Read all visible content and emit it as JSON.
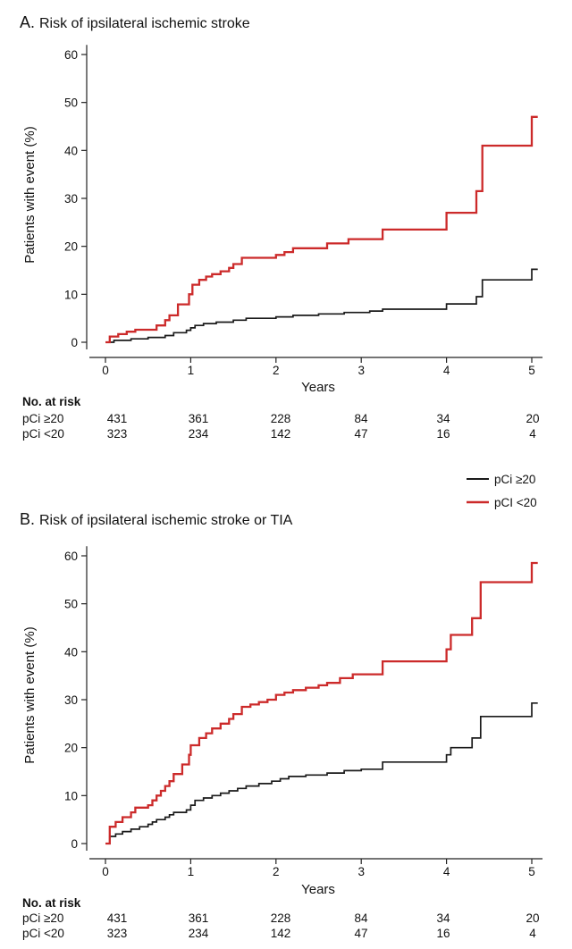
{
  "panels": [
    {
      "title": "Risk of ipsilateral ischemic stroke",
      "letter": "A.",
      "ylabel": "Patients with event (%)",
      "xlabel": "Years",
      "yticks": [
        "0",
        "10",
        "20",
        "30",
        "40",
        "50",
        "60"
      ],
      "xticks": [
        "0",
        "1",
        "2",
        "3",
        "4",
        "5"
      ],
      "risk": {
        "heading": "No. at risk",
        "rows": [
          {
            "label": "pCi ≥20",
            "values": [
              "431",
              "361",
              "228",
              "84",
              "34",
              "20"
            ]
          },
          {
            "label": "pCi <20",
            "values": [
              "323",
              "234",
              "142",
              "47",
              "16",
              "4"
            ]
          }
        ]
      }
    },
    {
      "title": "Risk of ipsilateral ischemic stroke or TIA",
      "letter": "B.",
      "ylabel": "Patients with event (%)",
      "xlabel": "Years",
      "yticks": [
        "0",
        "10",
        "20",
        "30",
        "40",
        "50",
        "60"
      ],
      "xticks": [
        "0",
        "1",
        "2",
        "3",
        "4",
        "5"
      ],
      "risk": {
        "heading": "No. at risk",
        "rows": [
          {
            "label": "pCi ≥20",
            "values": [
              "431",
              "361",
              "228",
              "84",
              "34",
              "20"
            ]
          },
          {
            "label": "pCi <20",
            "values": [
              "323",
              "234",
              "142",
              "47",
              "16",
              "4"
            ]
          }
        ]
      }
    }
  ],
  "legend": [
    {
      "label": "pCi ≥20",
      "color": "#1a1a1a"
    },
    {
      "label": "pCI <20",
      "color": "#cc2a2a"
    }
  ],
  "chart_data": [
    {
      "type": "line",
      "step": true,
      "title": "Risk of ipsilateral ischemic stroke",
      "xlabel": "Years",
      "ylabel": "Patients with event (%)",
      "xlim": [
        0,
        5.1
      ],
      "ylim": [
        0,
        60
      ],
      "grid": false,
      "series": [
        {
          "name": "pCi ≥20",
          "color": "#1a1a1a",
          "points": [
            [
              0,
              0
            ],
            [
              0.1,
              0.4
            ],
            [
              0.3,
              0.7
            ],
            [
              0.5,
              1.0
            ],
            [
              0.7,
              1.4
            ],
            [
              0.8,
              2.0
            ],
            [
              0.95,
              2.5
            ],
            [
              1.0,
              3.0
            ],
            [
              1.05,
              3.5
            ],
            [
              1.15,
              3.9
            ],
            [
              1.3,
              4.2
            ],
            [
              1.5,
              4.6
            ],
            [
              1.65,
              5.0
            ],
            [
              2.0,
              5.3
            ],
            [
              2.2,
              5.6
            ],
            [
              2.5,
              5.9
            ],
            [
              2.8,
              6.2
            ],
            [
              3.1,
              6.5
            ],
            [
              3.25,
              6.9
            ],
            [
              4.0,
              8.0
            ],
            [
              4.35,
              9.5
            ],
            [
              4.42,
              13.0
            ],
            [
              5.0,
              15.2
            ],
            [
              5.07,
              15.2
            ]
          ]
        },
        {
          "name": "pCI <20",
          "color": "#cc2a2a",
          "points": [
            [
              0,
              0
            ],
            [
              0.05,
              1.2
            ],
            [
              0.15,
              1.7
            ],
            [
              0.25,
              2.2
            ],
            [
              0.35,
              2.6
            ],
            [
              0.6,
              3.5
            ],
            [
              0.7,
              4.6
            ],
            [
              0.75,
              5.6
            ],
            [
              0.85,
              7.9
            ],
            [
              0.98,
              10.0
            ],
            [
              1.02,
              12.0
            ],
            [
              1.1,
              13.0
            ],
            [
              1.18,
              13.7
            ],
            [
              1.25,
              14.2
            ],
            [
              1.35,
              14.8
            ],
            [
              1.45,
              15.5
            ],
            [
              1.5,
              16.3
            ],
            [
              1.6,
              17.6
            ],
            [
              2.0,
              18.2
            ],
            [
              2.1,
              18.8
            ],
            [
              2.2,
              19.6
            ],
            [
              2.6,
              20.6
            ],
            [
              2.85,
              21.5
            ],
            [
              3.25,
              23.5
            ],
            [
              4.0,
              27.0
            ],
            [
              4.35,
              31.5
            ],
            [
              4.42,
              41.0
            ],
            [
              5.0,
              47.0
            ],
            [
              5.07,
              47.0
            ]
          ]
        }
      ]
    },
    {
      "type": "line",
      "step": true,
      "title": "Risk of ipsilateral ischemic stroke or TIA",
      "xlabel": "Years",
      "ylabel": "Patients with event (%)",
      "xlim": [
        0,
        5.1
      ],
      "ylim": [
        0,
        60
      ],
      "grid": false,
      "series": [
        {
          "name": "pCi ≥20",
          "color": "#1a1a1a",
          "points": [
            [
              0,
              0
            ],
            [
              0.05,
              1.5
            ],
            [
              0.12,
              2.0
            ],
            [
              0.2,
              2.5
            ],
            [
              0.3,
              3.0
            ],
            [
              0.4,
              3.5
            ],
            [
              0.5,
              4.0
            ],
            [
              0.55,
              4.5
            ],
            [
              0.6,
              5.0
            ],
            [
              0.7,
              5.5
            ],
            [
              0.75,
              6.0
            ],
            [
              0.8,
              6.5
            ],
            [
              0.95,
              7.0
            ],
            [
              1.0,
              8.0
            ],
            [
              1.05,
              9.0
            ],
            [
              1.15,
              9.5
            ],
            [
              1.25,
              10.0
            ],
            [
              1.35,
              10.5
            ],
            [
              1.45,
              11.0
            ],
            [
              1.55,
              11.5
            ],
            [
              1.65,
              12.0
            ],
            [
              1.8,
              12.5
            ],
            [
              1.95,
              13.0
            ],
            [
              2.05,
              13.5
            ],
            [
              2.15,
              14.0
            ],
            [
              2.35,
              14.3
            ],
            [
              2.6,
              14.7
            ],
            [
              2.8,
              15.2
            ],
            [
              3.0,
              15.5
            ],
            [
              3.25,
              17.0
            ],
            [
              4.0,
              18.5
            ],
            [
              4.05,
              20.0
            ],
            [
              4.3,
              22.0
            ],
            [
              4.4,
              26.5
            ],
            [
              5.0,
              29.3
            ],
            [
              5.07,
              29.3
            ]
          ]
        },
        {
          "name": "pCI <20",
          "color": "#cc2a2a",
          "points": [
            [
              0,
              0
            ],
            [
              0.05,
              3.5
            ],
            [
              0.12,
              4.5
            ],
            [
              0.2,
              5.5
            ],
            [
              0.3,
              6.5
            ],
            [
              0.35,
              7.5
            ],
            [
              0.5,
              8.0
            ],
            [
              0.55,
              9.0
            ],
            [
              0.6,
              10.0
            ],
            [
              0.65,
              11.0
            ],
            [
              0.7,
              12.0
            ],
            [
              0.75,
              13.0
            ],
            [
              0.8,
              14.5
            ],
            [
              0.9,
              16.5
            ],
            [
              0.98,
              18.5
            ],
            [
              1.0,
              20.5
            ],
            [
              1.1,
              22.0
            ],
            [
              1.18,
              23.0
            ],
            [
              1.25,
              24.0
            ],
            [
              1.35,
              25.0
            ],
            [
              1.45,
              26.0
            ],
            [
              1.5,
              27.0
            ],
            [
              1.6,
              28.5
            ],
            [
              1.7,
              29.0
            ],
            [
              1.8,
              29.5
            ],
            [
              1.9,
              30.0
            ],
            [
              2.0,
              31.0
            ],
            [
              2.1,
              31.5
            ],
            [
              2.2,
              32.0
            ],
            [
              2.35,
              32.5
            ],
            [
              2.5,
              33.0
            ],
            [
              2.6,
              33.5
            ],
            [
              2.75,
              34.5
            ],
            [
              2.9,
              35.3
            ],
            [
              3.25,
              38.0
            ],
            [
              4.0,
              40.5
            ],
            [
              4.05,
              43.5
            ],
            [
              4.3,
              47.0
            ],
            [
              4.4,
              54.5
            ],
            [
              5.0,
              58.5
            ],
            [
              5.07,
              58.5
            ]
          ]
        }
      ]
    }
  ]
}
